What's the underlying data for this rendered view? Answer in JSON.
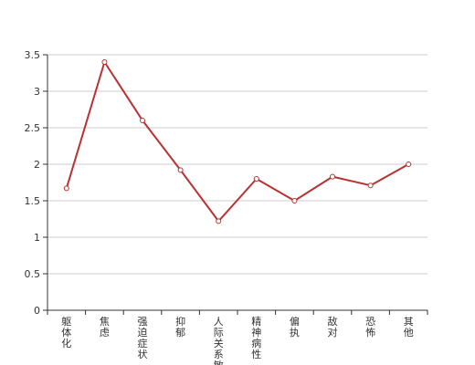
{
  "chart_data": {
    "type": "line",
    "categories": [
      "躯体化",
      "焦虑",
      "强迫症状",
      "抑郁",
      "人际关系敏感",
      "精神病性",
      "偏执",
      "敌对",
      "恐怖",
      "其他"
    ],
    "series": [
      {
        "values": [
          1.67,
          3.4,
          2.6,
          1.92,
          1.22,
          1.8,
          1.5,
          1.83,
          1.71,
          2.0
        ]
      }
    ],
    "ylim": [
      0,
      3.5
    ],
    "yticks": [
      0,
      0.5,
      1,
      1.5,
      2,
      2.5,
      3,
      3.5
    ],
    "ytick_labels": [
      "0",
      "0.5",
      "1",
      "1.5",
      "2",
      "2.5",
      "3",
      "3.5"
    ],
    "grid": true,
    "colors": {
      "line": "#b83232",
      "grid": "#cccccc",
      "axis": "#333333",
      "marker_fill": "#ffffff"
    }
  }
}
